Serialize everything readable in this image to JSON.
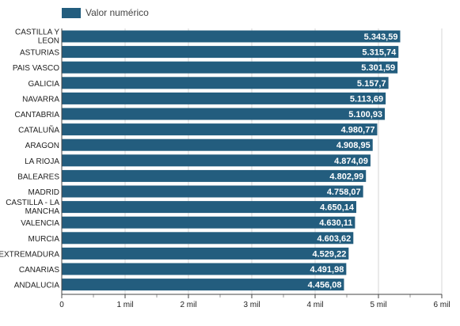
{
  "chart_data": {
    "type": "bar",
    "orientation": "horizontal",
    "legend": {
      "position": "top-left",
      "entries": [
        "Valor numérico"
      ]
    },
    "categories": [
      [
        "CASTILLA Y",
        "LEON"
      ],
      [
        "ASTURIAS"
      ],
      [
        "PAIS VASCO"
      ],
      [
        "GALICIA"
      ],
      [
        "NAVARRA"
      ],
      [
        "CANTABRIA"
      ],
      [
        "CATALUÑA"
      ],
      [
        "ARAGON"
      ],
      [
        "LA RIOJA"
      ],
      [
        "BALEARES"
      ],
      [
        "MADRID"
      ],
      [
        "CASTILLA - LA",
        "MANCHA"
      ],
      [
        "VALENCIA"
      ],
      [
        "MURCIA"
      ],
      [
        "EXTREMADURA"
      ],
      [
        "CANARIAS"
      ],
      [
        "ANDALUCIA"
      ]
    ],
    "series": [
      {
        "name": "Valor numérico",
        "color": "#235d7e",
        "values": [
          5343.59,
          5315.74,
          5301.59,
          5157.7,
          5113.69,
          5100.93,
          4980.77,
          4908.95,
          4874.09,
          4802.99,
          4758.07,
          4650.14,
          4630.11,
          4603.62,
          4529.22,
          4491.98,
          4456.08
        ],
        "labels": [
          "5.343,59",
          "5.315,74",
          "5.301,59",
          "5.157,7",
          "5.113,69",
          "5.100,93",
          "4.980,77",
          "4.908,95",
          "4.874,09",
          "4.802,99",
          "4.758,07",
          "4.650,14",
          "4.630,11",
          "4.603,62",
          "4.529,22",
          "4.491,98",
          "4.456,08"
        ]
      }
    ],
    "xlim": [
      0,
      6000
    ],
    "xticks": [
      0,
      1000,
      2000,
      3000,
      4000,
      5000,
      6000
    ],
    "xtick_labels": [
      "0",
      "1 mil",
      "2 mil",
      "3 mil",
      "4 mil",
      "5 mil",
      "6 mil"
    ],
    "grid": true,
    "colors": {
      "bar": "#235d7e",
      "grid": "#d6d6d6",
      "axis": "#444444"
    }
  }
}
